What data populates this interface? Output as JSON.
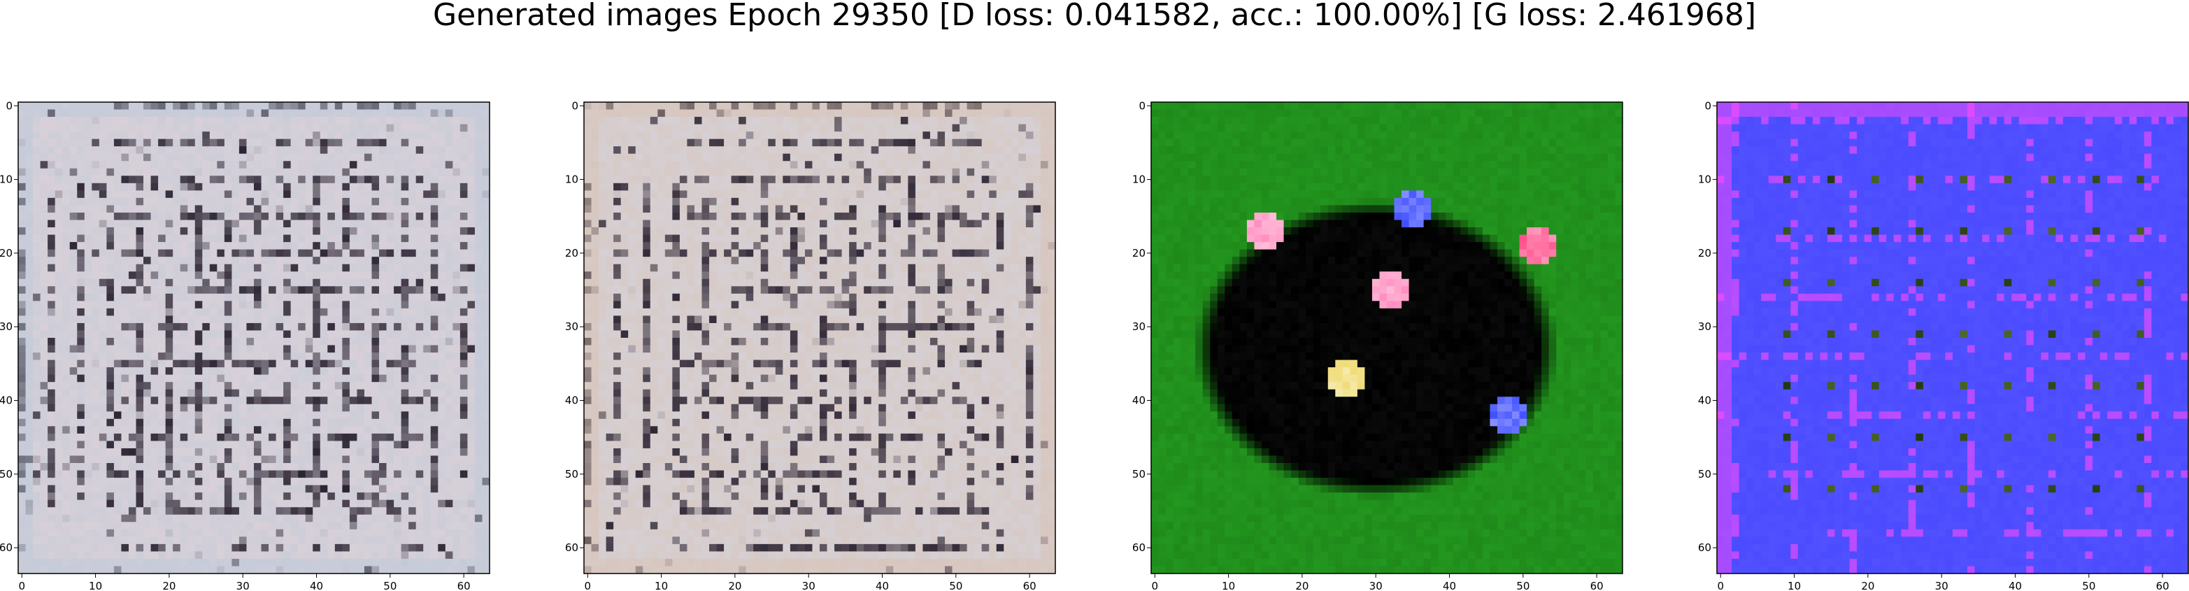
{
  "figure": {
    "title": "Generated images Epoch 29350 [D loss: 0.041582, acc.: 100.00%] [G loss: 2.461968]"
  },
  "axes": {
    "x_ticks": [
      "0",
      "10",
      "20",
      "30",
      "40",
      "50",
      "60"
    ],
    "y_ticks": [
      "0",
      "10",
      "20",
      "30",
      "40",
      "50",
      "60"
    ]
  },
  "panels": [
    {
      "name": "sample-1",
      "style": "grayscale-noise",
      "colors": {
        "base": "#d8d0d8",
        "dark": "#2a2230",
        "tint": "#b8c8d8"
      }
    },
    {
      "name": "sample-2",
      "style": "grayscale-noise",
      "colors": {
        "base": "#d6d0d4",
        "dark": "#2a2230",
        "tint": "#d8c0b0"
      }
    },
    {
      "name": "sample-3",
      "style": "green-black-blob",
      "colors": {
        "base": "#1f8a1a",
        "dark": "#000000",
        "highlight": "#ff8fc0",
        "accent": "#3b4bff"
      }
    },
    {
      "name": "sample-4",
      "style": "blue-dots",
      "colors": {
        "base": "#4b4bff",
        "dark": "#233a10",
        "highlight": "#ff4bff",
        "accent": "#6a8a30"
      }
    }
  ]
}
